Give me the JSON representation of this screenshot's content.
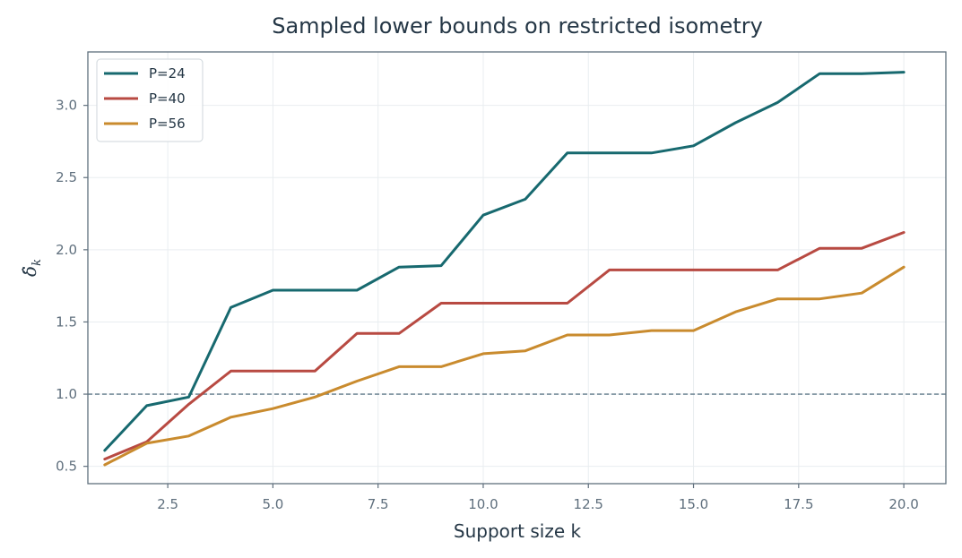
{
  "chart_data": {
    "type": "line",
    "title": "Sampled lower bounds on restricted isometry",
    "xlabel": "Support size k",
    "ylabel": "δ̂_k",
    "xlim": [
      0.6,
      21.0
    ],
    "ylim": [
      0.38,
      3.37
    ],
    "xticks": [
      "2.5",
      "5.0",
      "7.5",
      "10.0",
      "12.5",
      "15.0",
      "17.5",
      "20.0"
    ],
    "yticks": [
      "0.5",
      "1.0",
      "1.5",
      "2.0",
      "2.5",
      "3.0"
    ],
    "grid": true,
    "legend_position": "top-left",
    "reference_line": {
      "y": 1.0,
      "style": "dashed",
      "color": "#5f7888"
    },
    "x": [
      1,
      2,
      3,
      4,
      5,
      6,
      7,
      8,
      9,
      10,
      11,
      12,
      13,
      14,
      15,
      16,
      17,
      18,
      19,
      20
    ],
    "series": [
      {
        "name": "P=24",
        "color": "#17696f",
        "values": [
          0.61,
          0.92,
          0.98,
          1.6,
          1.72,
          1.72,
          1.72,
          1.88,
          1.89,
          2.24,
          2.35,
          2.67,
          2.67,
          2.67,
          2.72,
          2.88,
          3.02,
          3.22,
          3.22,
          3.23
        ]
      },
      {
        "name": "P=40",
        "color": "#b84a42",
        "values": [
          0.55,
          0.67,
          0.93,
          1.16,
          1.16,
          1.16,
          1.42,
          1.42,
          1.63,
          1.63,
          1.63,
          1.63,
          1.86,
          1.86,
          1.86,
          1.86,
          1.86,
          2.01,
          2.01,
          2.12
        ]
      },
      {
        "name": "P=56",
        "color": "#c98b2e",
        "values": [
          0.51,
          0.66,
          0.71,
          0.84,
          0.9,
          0.98,
          1.09,
          1.19,
          1.19,
          1.28,
          1.3,
          1.41,
          1.41,
          1.44,
          1.44,
          1.57,
          1.66,
          1.66,
          1.7,
          1.88
        ]
      }
    ]
  }
}
